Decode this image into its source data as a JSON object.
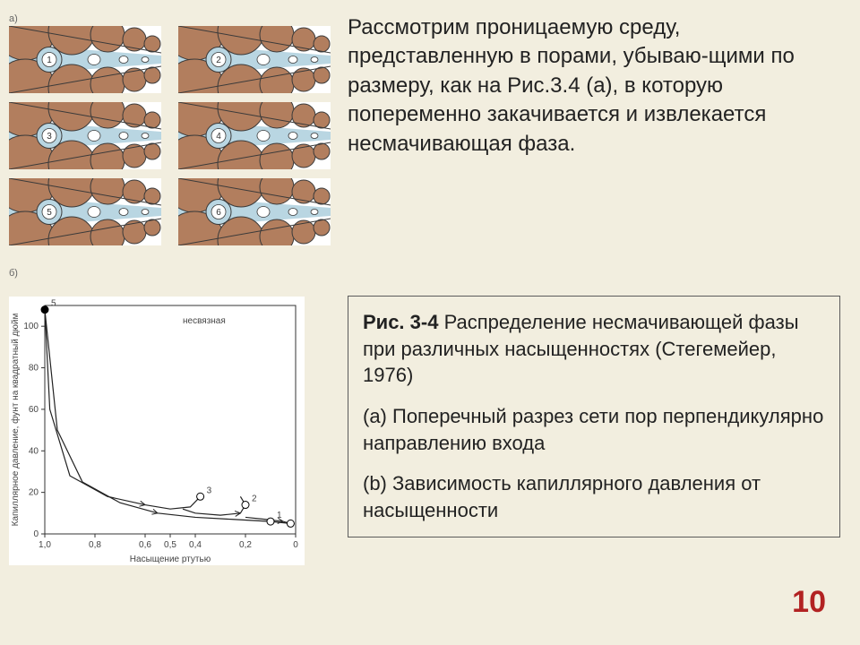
{
  "colors": {
    "background": "#f2eedf",
    "grain": "#b27e5e",
    "fluid": "#b9d6e2",
    "outline": "#3a3a3a",
    "text": "#222222",
    "pagenum": "#b22222",
    "boxborder": "#5b5b5b"
  },
  "pore_panels": [
    {
      "num": "1"
    },
    {
      "num": "2"
    },
    {
      "num": "3"
    },
    {
      "num": "4"
    },
    {
      "num": "5"
    },
    {
      "num": "6"
    }
  ],
  "panel_label_a": "а)",
  "panel_label_b": "б)",
  "main_paragraph": "Рассмотрим проницаемую среду, представленную в порами, убываю-щими по размеру, как на Рис.3.4 (a), в которую попеременно закачивается и извлекается несмачивающая фаза.",
  "caption": {
    "title_bold": "Рис. 3-4",
    "title_rest": " Распределение несмачивающей фазы при различных насыщенностях (Стегемейер, 1976)",
    "item_a": "(a) Поперечный разрез сети пор перпендикулярно направлению входа",
    "item_b": "(b) Зависимость капиллярного давления от насыщенности"
  },
  "page_number": "10",
  "chart": {
    "type": "line",
    "xlabel": "Насыщение ртутью",
    "ylabel": "Капиллярное давление, фунт на квадратный дюйм",
    "legend": "несвязная",
    "xlim": [
      0,
      1.0
    ],
    "ylim": [
      0,
      110
    ],
    "xticks": [
      0,
      0.2,
      0.4,
      0.5,
      0.6,
      0.8,
      1.0
    ],
    "xtick_labels": [
      "0",
      "0,2",
      "0,4",
      "0,5",
      "0,6",
      "0,8",
      "1,0"
    ],
    "yticks": [
      0,
      20,
      40,
      60,
      80,
      100
    ],
    "ytick_labels": [
      "0",
      "20",
      "40",
      "60",
      "80",
      "100"
    ],
    "curves": [
      {
        "name": "main-drainage",
        "points": [
          [
            1.0,
            108
          ],
          [
            0.95,
            50
          ],
          [
            0.85,
            25
          ],
          [
            0.7,
            15
          ],
          [
            0.55,
            10
          ],
          [
            0.4,
            8
          ],
          [
            0.25,
            7
          ],
          [
            0.1,
            6
          ],
          [
            0.02,
            5
          ]
        ]
      },
      {
        "name": "imbibition-1",
        "points": [
          [
            1.0,
            108
          ],
          [
            0.98,
            60
          ],
          [
            0.9,
            28
          ],
          [
            0.75,
            18
          ],
          [
            0.6,
            14
          ],
          [
            0.5,
            12
          ],
          [
            0.42,
            13
          ],
          [
            0.38,
            18
          ]
        ]
      },
      {
        "name": "loop-2",
        "points": [
          [
            0.45,
            12
          ],
          [
            0.4,
            10
          ],
          [
            0.3,
            9
          ],
          [
            0.22,
            10
          ],
          [
            0.2,
            14
          ],
          [
            0.22,
            18
          ]
        ]
      },
      {
        "name": "tail-3",
        "points": [
          [
            0.2,
            8
          ],
          [
            0.12,
            7
          ],
          [
            0.05,
            6
          ],
          [
            0.02,
            5
          ]
        ]
      }
    ],
    "markers": [
      {
        "x": 1.0,
        "y": 108,
        "label": "5",
        "filled": true
      },
      {
        "x": 0.38,
        "y": 18,
        "label": "3",
        "filled": false
      },
      {
        "x": 0.2,
        "y": 14,
        "label": "2",
        "filled": false
      },
      {
        "x": 0.1,
        "y": 6,
        "label": "1",
        "filled": false
      },
      {
        "x": 0.02,
        "y": 5,
        "label": "",
        "filled": false
      }
    ],
    "line_color": "#222222",
    "line_width": 1.2,
    "background": "#ffffff"
  }
}
